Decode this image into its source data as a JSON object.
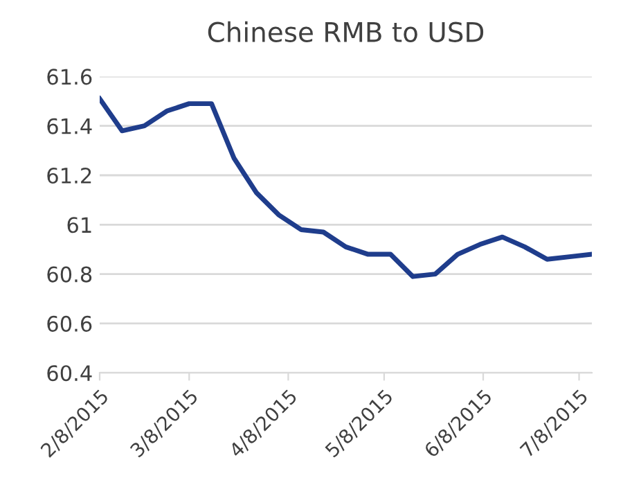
{
  "chart_data": {
    "type": "line",
    "title": "Chinese RMB to USD",
    "x": [
      "2015-02-08",
      "2015-02-15",
      "2015-02-22",
      "2015-03-01",
      "2015-03-08",
      "2015-03-15",
      "2015-03-22",
      "2015-03-29",
      "2015-04-05",
      "2015-04-12",
      "2015-04-19",
      "2015-04-26",
      "2015-05-03",
      "2015-05-10",
      "2015-05-17",
      "2015-05-24",
      "2015-05-31",
      "2015-06-07",
      "2015-06-14",
      "2015-06-21",
      "2015-06-28",
      "2015-07-05",
      "2015-07-12"
    ],
    "series": [
      {
        "color": "#1f3d8c",
        "values": [
          61.51,
          61.38,
          61.4,
          61.46,
          61.49,
          61.49,
          61.27,
          61.13,
          61.04,
          60.98,
          60.97,
          60.91,
          60.88,
          60.88,
          60.79,
          60.8,
          60.88,
          60.92,
          60.95,
          60.91,
          60.86,
          60.87,
          60.88
        ]
      }
    ],
    "xlim": [
      "2015-02-08",
      "2015-07-12"
    ],
    "xticks": [
      {
        "value": "2015-02-08",
        "label": "2/8/2015"
      },
      {
        "value": "2015-03-08",
        "label": "3/8/2015"
      },
      {
        "value": "2015-04-08",
        "label": "4/8/2015"
      },
      {
        "value": "2015-05-08",
        "label": "5/8/2015"
      },
      {
        "value": "2015-06-08",
        "label": "6/8/2015"
      },
      {
        "value": "2015-07-08",
        "label": "7/8/2015"
      }
    ],
    "ylim": [
      60.4,
      61.6
    ],
    "yticks": [
      {
        "value": 60.4,
        "label": "60.4"
      },
      {
        "value": 60.6,
        "label": "60.6"
      },
      {
        "value": 60.8,
        "label": "60.8"
      },
      {
        "value": 61,
        "label": "61"
      },
      {
        "value": 61.2,
        "label": "61.2"
      },
      {
        "value": 61.4,
        "label": "61.4"
      },
      {
        "value": 61.6,
        "label": "61.6"
      }
    ],
    "grid": "y",
    "legend": false,
    "marker": "none",
    "line_style": "solid"
  }
}
